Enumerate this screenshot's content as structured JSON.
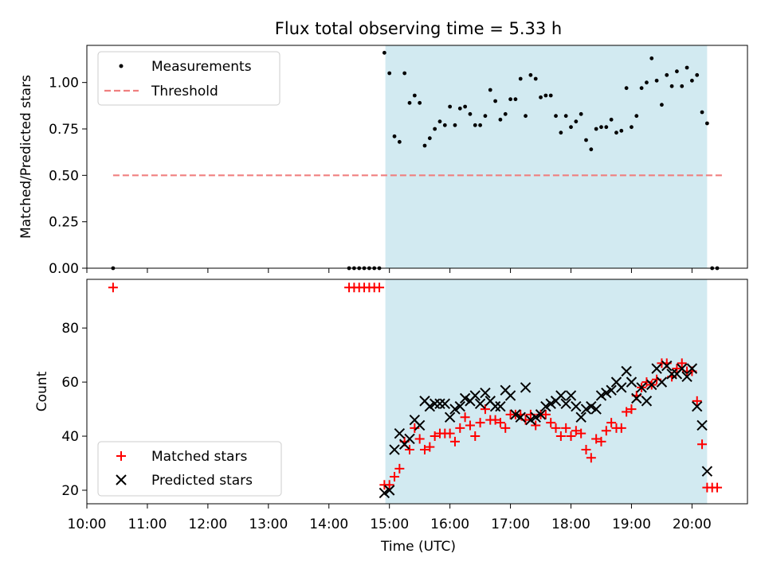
{
  "title": "Flux total observing time = 5.33 h",
  "colors": {
    "measurements": "#000000",
    "threshold": "#f08080",
    "shade": "#add8e6",
    "matched": "#ff0000",
    "predicted": "#000000"
  },
  "chart_data": [
    {
      "type": "scatter",
      "ylabel": "Matched/Predicted stars",
      "xlim": [
        "10:00",
        "20:55"
      ],
      "ylim": [
        0,
        1.2
      ],
      "yticks": [
        "0.00",
        "0.25",
        "0.50",
        "0.75",
        "1.00"
      ],
      "grid": false,
      "legend": "top-left",
      "shaded_span": [
        "14:56",
        "20:15"
      ],
      "threshold": {
        "name": "Threshold",
        "value": 0.5,
        "x": [
          "10:26",
          "20:30"
        ]
      },
      "series": [
        {
          "name": "Measurements",
          "x": [
            "10:26",
            "14:20",
            "14:25",
            "14:30",
            "14:35",
            "14:40",
            "14:45",
            "14:50",
            "14:55",
            "15:00",
            "15:05",
            "15:10",
            "15:15",
            "15:20",
            "15:25",
            "15:30",
            "15:35",
            "15:40",
            "15:45",
            "15:50",
            "15:55",
            "16:00",
            "16:05",
            "16:10",
            "16:15",
            "16:20",
            "16:25",
            "16:30",
            "16:35",
            "16:40",
            "16:45",
            "16:50",
            "16:55",
            "17:00",
            "17:05",
            "17:10",
            "17:15",
            "17:20",
            "17:25",
            "17:30",
            "17:35",
            "17:40",
            "17:45",
            "17:50",
            "17:55",
            "18:00",
            "18:05",
            "18:10",
            "18:15",
            "18:20",
            "18:25",
            "18:30",
            "18:35",
            "18:40",
            "18:45",
            "18:50",
            "18:55",
            "19:00",
            "19:05",
            "19:10",
            "19:15",
            "19:20",
            "19:25",
            "19:30",
            "19:35",
            "19:40",
            "19:45",
            "19:50",
            "19:55",
            "20:00",
            "20:05",
            "20:10",
            "20:15",
            "20:20",
            "20:25"
          ],
          "y": [
            0,
            0,
            0,
            0,
            0,
            0,
            0,
            0,
            1.16,
            1.05,
            0.71,
            0.68,
            1.05,
            0.89,
            0.93,
            0.89,
            0.66,
            0.7,
            0.75,
            0.79,
            0.77,
            0.87,
            0.77,
            0.86,
            0.87,
            0.83,
            0.77,
            0.77,
            0.82,
            0.96,
            0.9,
            0.8,
            0.83,
            0.91,
            0.91,
            1.02,
            0.82,
            1.04,
            1.02,
            0.92,
            0.93,
            0.93,
            0.82,
            0.73,
            0.82,
            0.76,
            0.79,
            0.83,
            0.69,
            0.64,
            0.75,
            0.76,
            0.76,
            0.8,
            0.73,
            0.74,
            0.97,
            0.76,
            0.82,
            0.97,
            1.0,
            1.13,
            1.01,
            0.88,
            1.04,
            0.98,
            1.06,
            0.98,
            1.08,
            1.01,
            1.04,
            0.84,
            0.78,
            0,
            0
          ]
        }
      ]
    },
    {
      "type": "scatter",
      "xlabel": "Time (UTC)",
      "ylabel": "Count",
      "xlim": [
        "10:00",
        "20:55"
      ],
      "ylim": [
        15,
        98
      ],
      "yticks": [
        "20",
        "40",
        "60",
        "80"
      ],
      "xticks": [
        "10:00",
        "11:00",
        "12:00",
        "13:00",
        "14:00",
        "15:00",
        "16:00",
        "17:00",
        "18:00",
        "19:00",
        "20:00"
      ],
      "grid": false,
      "legend": "bottom-left",
      "shaded_span": [
        "14:56",
        "20:15"
      ],
      "series": [
        {
          "name": "Matched stars",
          "marker": "plus",
          "x": [
            "10:26",
            "14:20",
            "14:25",
            "14:30",
            "14:35",
            "14:40",
            "14:45",
            "14:50",
            "14:55",
            "15:00",
            "15:05",
            "15:10",
            "15:15",
            "15:20",
            "15:25",
            "15:30",
            "15:35",
            "15:40",
            "15:45",
            "15:50",
            "15:55",
            "16:00",
            "16:05",
            "16:10",
            "16:15",
            "16:20",
            "16:25",
            "16:30",
            "16:35",
            "16:40",
            "16:45",
            "16:50",
            "16:55",
            "17:00",
            "17:05",
            "17:10",
            "17:15",
            "17:20",
            "17:25",
            "17:30",
            "17:35",
            "17:40",
            "17:45",
            "17:50",
            "17:55",
            "18:00",
            "18:05",
            "18:10",
            "18:15",
            "18:20",
            "18:25",
            "18:30",
            "18:35",
            "18:40",
            "18:45",
            "18:50",
            "18:55",
            "19:00",
            "19:05",
            "19:10",
            "19:15",
            "19:20",
            "19:25",
            "19:30",
            "19:35",
            "19:40",
            "19:45",
            "19:50",
            "19:55",
            "20:00",
            "20:05",
            "20:10",
            "20:15",
            "20:20",
            "20:25"
          ],
          "y": [
            95,
            95,
            95,
            95,
            95,
            95,
            95,
            95,
            22,
            22,
            25,
            28,
            38,
            35,
            43,
            39,
            35,
            36,
            40,
            41,
            41,
            41,
            38,
            43,
            47,
            44,
            40,
            45,
            50,
            46,
            46,
            45,
            43,
            48,
            48,
            48,
            46,
            48,
            44,
            48,
            48,
            45,
            43,
            40,
            43,
            40,
            42,
            41,
            35,
            32,
            39,
            38,
            42,
            45,
            43,
            43,
            49,
            50,
            55,
            58,
            60,
            59,
            61,
            67,
            67,
            62,
            65,
            67,
            64,
            64,
            53,
            37,
            21,
            21,
            21
          ]
        },
        {
          "name": "Predicted stars",
          "marker": "x",
          "x": [
            "14:55",
            "15:00",
            "15:05",
            "15:10",
            "15:15",
            "15:20",
            "15:25",
            "15:30",
            "15:35",
            "15:40",
            "15:45",
            "15:50",
            "15:55",
            "16:00",
            "16:05",
            "16:10",
            "16:15",
            "16:20",
            "16:25",
            "16:30",
            "16:35",
            "16:40",
            "16:45",
            "16:50",
            "16:55",
            "17:00",
            "17:05",
            "17:10",
            "17:15",
            "17:20",
            "17:25",
            "17:30",
            "17:35",
            "17:40",
            "17:45",
            "17:50",
            "17:55",
            "18:00",
            "18:05",
            "18:10",
            "18:15",
            "18:20",
            "18:25",
            "18:30",
            "18:35",
            "18:40",
            "18:45",
            "18:50",
            "18:55",
            "19:00",
            "19:05",
            "19:10",
            "19:15",
            "19:20",
            "19:25",
            "19:30",
            "19:35",
            "19:40",
            "19:45",
            "19:50",
            "19:55",
            "20:00",
            "20:05",
            "20:10",
            "20:15"
          ],
          "y": [
            19,
            20,
            35,
            41,
            37,
            39,
            46,
            44,
            53,
            51,
            52,
            52,
            52,
            47,
            50,
            51,
            54,
            53,
            55,
            52,
            56,
            53,
            51,
            51,
            57,
            55,
            48,
            47,
            58,
            46,
            47,
            48,
            51,
            52,
            53,
            55,
            52,
            55,
            51,
            47,
            50,
            51,
            50,
            55,
            56,
            57,
            60,
            58,
            64,
            60,
            54,
            58,
            53,
            59,
            65,
            60,
            66,
            63,
            63,
            65,
            62,
            65,
            51,
            44,
            27
          ]
        }
      ]
    }
  ]
}
